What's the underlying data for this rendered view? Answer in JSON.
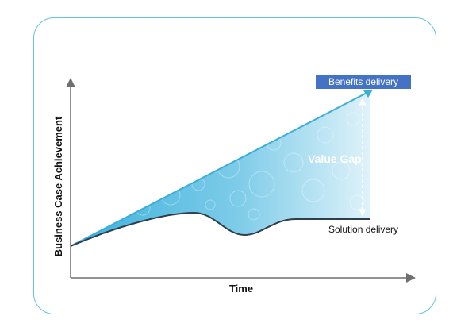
{
  "diagram": {
    "y_axis_label": "Business Case Achievement",
    "x_axis_label": "Time",
    "benefits_label": "Benefits delivery",
    "solution_label": "Solution delivery",
    "gap_label": "Value Gap",
    "colors": {
      "frame": "#62c4e0",
      "badge": "#4472c4",
      "fill_light": "#e4f4fb",
      "fill_dark": "#3db1dc",
      "axis": "#6f6f6f",
      "solution_line": "#2f3e4c"
    }
  }
}
